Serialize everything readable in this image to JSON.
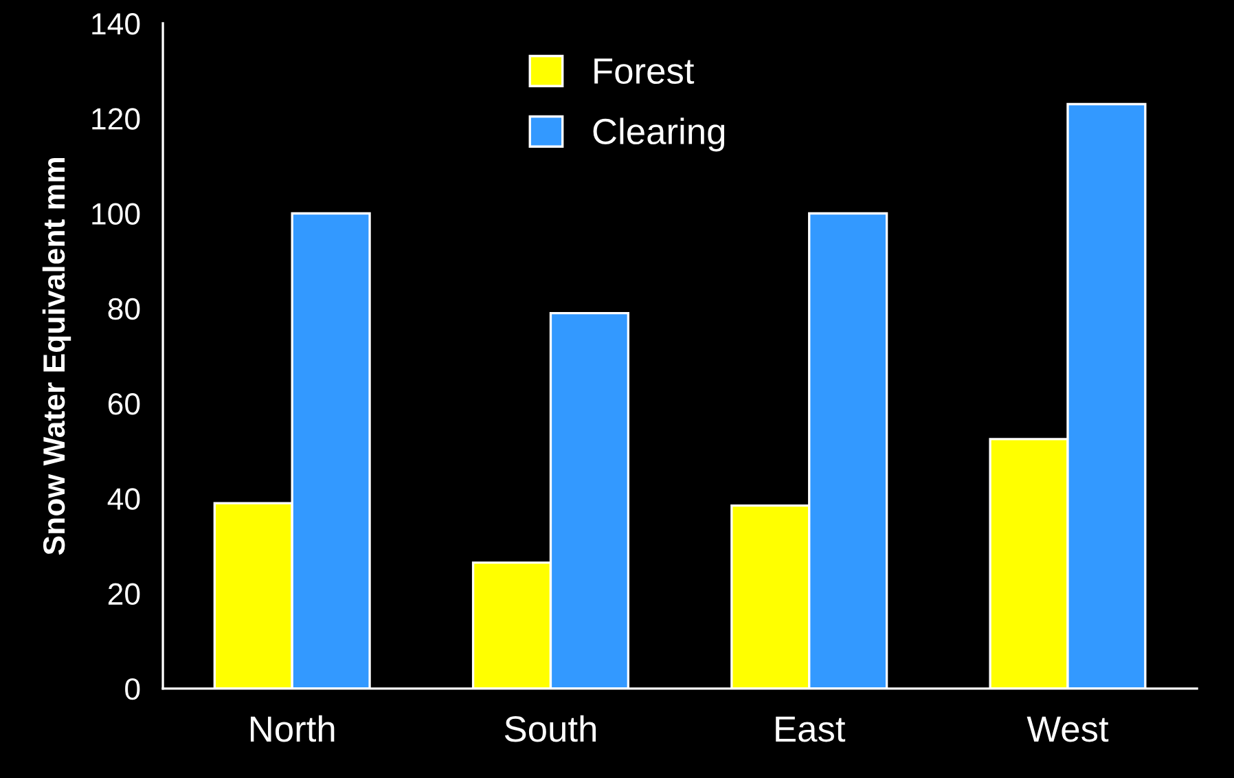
{
  "chart_data": {
    "type": "bar",
    "ylabel": "Snow Water Equivalent mm",
    "categories": [
      "North",
      "South",
      "East",
      "West"
    ],
    "series": [
      {
        "name": "Forest",
        "color": "#ffff00",
        "values": [
          39,
          26.5,
          38.5,
          52.5
        ]
      },
      {
        "name": "Clearing",
        "color": "#3399ff",
        "values": [
          100,
          79,
          100,
          123
        ]
      }
    ],
    "ylim": [
      0,
      140
    ],
    "yticks": [
      0,
      20,
      40,
      60,
      80,
      100,
      120,
      140
    ],
    "grid": false,
    "legend": "top"
  }
}
